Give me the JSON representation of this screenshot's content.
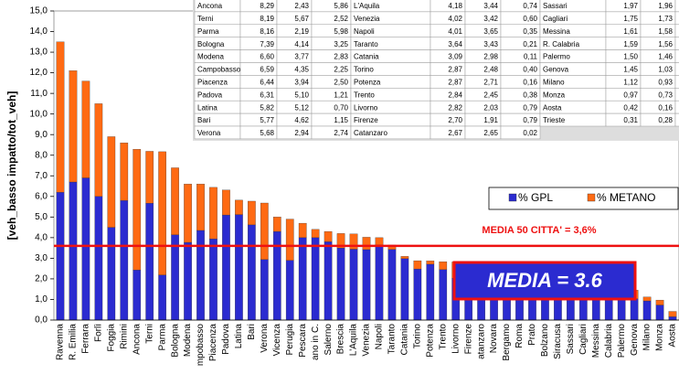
{
  "chart_data": {
    "type": "stacked_bar",
    "y_label": "[veh_basso impatto/tot_veh]",
    "categories": [
      "Ravenna",
      "R. Emilia",
      "Ferrara",
      "Forlì",
      "Foggia",
      "Rimini",
      "Ancona",
      "Terni",
      "Parma",
      "Bologna",
      "Modena",
      "mpobasso",
      "Piacenza",
      "Padova",
      "Latina",
      "Bari",
      "Verona",
      "Vicenza",
      "Perugia",
      "Pescara",
      "ano in C.",
      "Salerno",
      "Brescia",
      "L'Aquila",
      "Venezia",
      "Napoli",
      "Taranto",
      "Catania",
      "Torino",
      "Potenza",
      "Trento",
      "Livorno",
      "Firenze",
      "atanzaro",
      "Novara",
      "Bergamo",
      "Roma",
      "Prato",
      "Bolzano",
      "Siracusa",
      "Sassari",
      "Cagliari",
      "Messina",
      "Calabria",
      "Palermo",
      "Genova",
      "Milano",
      "Monza",
      "Aosta"
    ],
    "series": [
      {
        "name": "% GPL",
        "color": "#2b2bd0",
        "values": [
          6.2,
          6.7,
          6.9,
          6.0,
          4.5,
          5.8,
          2.43,
          5.67,
          2.19,
          4.14,
          3.77,
          4.35,
          3.94,
          5.1,
          5.12,
          4.62,
          2.94,
          4.3,
          2.9,
          4.0,
          4.0,
          3.8,
          3.5,
          3.44,
          3.42,
          3.65,
          3.43,
          2.98,
          2.48,
          2.71,
          2.45,
          2.03,
          1.91,
          2.65,
          2.4,
          2.2,
          2.2,
          2.0,
          2.0,
          1.9,
          1.96,
          1.73,
          1.58,
          1.56,
          1.46,
          1.03,
          0.93,
          0.73,
          0.16
        ]
      },
      {
        "name": "% METANO",
        "color": "#ff6a13",
        "values": [
          7.3,
          5.4,
          4.7,
          4.5,
          4.4,
          2.8,
          5.86,
          2.52,
          5.98,
          3.25,
          2.83,
          2.25,
          2.5,
          1.21,
          0.7,
          1.15,
          2.74,
          0.7,
          2.0,
          0.7,
          0.4,
          0.5,
          0.7,
          0.74,
          0.6,
          0.35,
          0.21,
          0.11,
          0.4,
          0.16,
          0.38,
          0.79,
          0.79,
          0.02,
          0.1,
          0.2,
          0.1,
          0.2,
          0.1,
          0.1,
          0.01,
          0.02,
          0.03,
          0.03,
          0.04,
          0.42,
          0.19,
          0.24,
          0.26
        ]
      }
    ],
    "ylim": [
      0,
      15
    ],
    "yticks": [
      {
        "value": 0,
        "label": "0,0"
      },
      {
        "value": 1,
        "label": "1,0"
      },
      {
        "value": 2,
        "label": "2,0"
      },
      {
        "value": 3,
        "label": "3,0"
      },
      {
        "value": 4,
        "label": "4,0"
      },
      {
        "value": 5,
        "label": "5,0"
      },
      {
        "value": 6,
        "label": "6,0"
      },
      {
        "value": 7,
        "label": "7,0"
      },
      {
        "value": 8,
        "label": "8,0"
      },
      {
        "value": 9,
        "label": "9,0"
      },
      {
        "value": 10,
        "label": "10,0"
      },
      {
        "value": 11,
        "label": "11,0"
      },
      {
        "value": 12,
        "label": "12,0"
      },
      {
        "value": 13,
        "label": "13,0"
      },
      {
        "value": 14,
        "label": "14,0"
      },
      {
        "value": 15,
        "label": "15,0"
      }
    ],
    "reference_line": {
      "value": 3.6,
      "color": "#ee1111",
      "label": "MEDIA  50 CITTA' = 3,6%"
    },
    "callout": "MEDIA = 3.6",
    "legend": "right"
  },
  "table": {
    "rows": [
      [
        "Ancona",
        "8,29",
        "2,43",
        "5,86",
        "L'Aquila",
        "4,18",
        "3,44",
        "0,74",
        "Sassari",
        "1,97",
        "1,96",
        "0,"
      ],
      [
        "Terni",
        "8,19",
        "5,67",
        "2,52",
        "Venezia",
        "4,02",
        "3,42",
        "0,60",
        "Cagliari",
        "1,75",
        "1,73",
        "0,"
      ],
      [
        "Parma",
        "8,16",
        "2,19",
        "5,98",
        "Napoli",
        "4,01",
        "3,65",
        "0,35",
        "Messina",
        "1,61",
        "1,58",
        "0,"
      ],
      [
        "Bologna",
        "7,39",
        "4,14",
        "3,25",
        "Taranto",
        "3,64",
        "3,43",
        "0,21",
        "R. Calabria",
        "1,59",
        "1,56",
        "0,"
      ],
      [
        "Modena",
        "6,60",
        "3,77",
        "2,83",
        "Catania",
        "3,09",
        "2,98",
        "0,11",
        "Palermo",
        "1,50",
        "1,46",
        "0,"
      ],
      [
        "Campobasso",
        "6,59",
        "4,35",
        "2,25",
        "Torino",
        "2,87",
        "2,48",
        "0,40",
        "Genova",
        "1,45",
        "1,03",
        "0,"
      ],
      [
        "Piacenza",
        "6,44",
        "3,94",
        "2,50",
        "Potenza",
        "2,87",
        "2,71",
        "0,16",
        "Milano",
        "1,12",
        "0,93",
        "0,"
      ],
      [
        "Padova",
        "6,31",
        "5,10",
        "1,21",
        "Trento",
        "2,84",
        "2,45",
        "0,38",
        "Monza",
        "0,97",
        "0,73",
        "0,"
      ],
      [
        "Latina",
        "5,82",
        "5,12",
        "0,70",
        "Livorno",
        "2,82",
        "2,03",
        "0,79",
        "Aosta",
        "0,42",
        "0,16",
        "0,"
      ],
      [
        "Bari",
        "5,77",
        "4,62",
        "1,15",
        "Firenze",
        "2,70",
        "1,91",
        "0,79",
        "Trieste",
        "0,31",
        "0,28",
        "0,"
      ],
      [
        "Verona",
        "5,68",
        "2,94",
        "2,74",
        "Catanzaro",
        "2,67",
        "2,65",
        "0,02"
      ]
    ]
  }
}
